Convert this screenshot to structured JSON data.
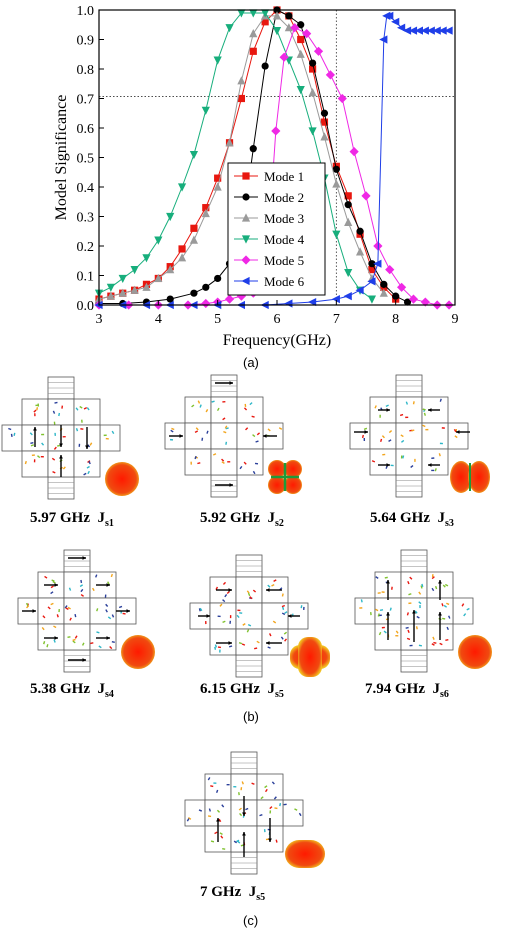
{
  "chart_data": {
    "type": "line",
    "xlabel": "Frequency(GHz)",
    "ylabel": "Model Significance",
    "xlim": [
      3,
      9
    ],
    "ylim": [
      0,
      1.0
    ],
    "xticks": [
      "3",
      "4",
      "5",
      "6",
      "7",
      "8",
      "9"
    ],
    "yticks": [
      "0.0",
      "0.1",
      "0.2",
      "0.3",
      "0.4",
      "0.5",
      "0.6",
      "0.7",
      "0.8",
      "0.9",
      "1.0"
    ],
    "reference_lines": {
      "x": 7,
      "y": 0.707
    },
    "legend_position": "center-right",
    "series": [
      {
        "name": "Mode 1",
        "color": "#e8170f",
        "marker": "square",
        "x": [
          3.0,
          3.2,
          3.4,
          3.6,
          3.8,
          4.0,
          4.2,
          4.4,
          4.6,
          4.8,
          5.0,
          5.2,
          5.4,
          5.6,
          5.8,
          6.0,
          6.2,
          6.4,
          6.6,
          6.8,
          7.0,
          7.2,
          7.4,
          7.6,
          7.8,
          8.0
        ],
        "y": [
          0.02,
          0.03,
          0.04,
          0.05,
          0.07,
          0.09,
          0.13,
          0.19,
          0.26,
          0.33,
          0.43,
          0.55,
          0.7,
          0.86,
          0.96,
          1.0,
          0.98,
          0.9,
          0.8,
          0.62,
          0.47,
          0.37,
          0.24,
          0.12,
          0.06,
          0.02
        ]
      },
      {
        "name": "Mode 2",
        "color": "#000000",
        "marker": "circle",
        "x": [
          3.0,
          3.4,
          3.8,
          4.2,
          4.6,
          4.8,
          5.0,
          5.2,
          5.4,
          5.6,
          5.8,
          6.0,
          6.2,
          6.4,
          6.6,
          6.8,
          7.0,
          7.2,
          7.4,
          7.6,
          7.8,
          8.0,
          8.2
        ],
        "y": [
          0.005,
          0.005,
          0.01,
          0.02,
          0.04,
          0.06,
          0.09,
          0.14,
          0.23,
          0.53,
          0.81,
          1.0,
          0.98,
          0.95,
          0.82,
          0.65,
          0.46,
          0.34,
          0.25,
          0.14,
          0.07,
          0.03,
          0.01
        ]
      },
      {
        "name": "Mode 3",
        "color": "#9a9a9a",
        "marker": "triangle-up",
        "x": [
          3.0,
          3.2,
          3.4,
          3.6,
          3.8,
          4.0,
          4.2,
          4.4,
          4.6,
          4.8,
          5.0,
          5.2,
          5.4,
          5.6,
          5.8,
          6.0,
          6.2,
          6.4,
          6.6,
          6.8,
          7.0,
          7.2,
          7.4,
          7.6,
          7.8
        ],
        "y": [
          0.02,
          0.03,
          0.04,
          0.05,
          0.06,
          0.09,
          0.12,
          0.16,
          0.22,
          0.31,
          0.4,
          0.55,
          0.76,
          0.92,
          0.98,
          0.98,
          0.94,
          0.85,
          0.72,
          0.57,
          0.41,
          0.28,
          0.18,
          0.09,
          0.04
        ]
      },
      {
        "name": "Mode 4",
        "color": "#17ae7c",
        "marker": "triangle-down",
        "x": [
          3.0,
          3.2,
          3.4,
          3.6,
          3.8,
          4.0,
          4.2,
          4.4,
          4.6,
          4.8,
          5.0,
          5.2,
          5.4,
          5.6,
          5.8,
          6.0,
          6.2,
          6.4,
          6.6,
          6.8,
          7.0,
          7.2,
          7.4,
          7.6
        ],
        "y": [
          0.04,
          0.06,
          0.09,
          0.12,
          0.16,
          0.22,
          0.3,
          0.4,
          0.51,
          0.66,
          0.83,
          0.94,
          0.99,
          0.99,
          0.99,
          0.93,
          0.83,
          0.73,
          0.59,
          0.43,
          0.24,
          0.11,
          0.05,
          0.02
        ]
      },
      {
        "name": "Mode 5",
        "color": "#ef28e5",
        "marker": "diamond",
        "x": [
          3.0,
          3.5,
          4.0,
          4.5,
          4.8,
          5.0,
          5.2,
          5.4,
          5.6,
          5.8,
          5.98,
          6.12,
          6.3,
          6.5,
          6.7,
          6.9,
          7.1,
          7.3,
          7.5,
          7.7,
          7.9,
          8.1,
          8.3,
          8.5,
          8.7,
          8.9
        ],
        "y": [
          0.0,
          0.0,
          0.0,
          0.0,
          0.005,
          0.01,
          0.02,
          0.03,
          0.04,
          0.06,
          0.59,
          0.84,
          0.94,
          0.92,
          0.86,
          0.78,
          0.7,
          0.52,
          0.37,
          0.2,
          0.12,
          0.06,
          0.02,
          0.01,
          0.0,
          0.0
        ]
      },
      {
        "name": "Mode 6",
        "color": "#1f3ee8",
        "marker": "triangle-left",
        "x": [
          3.0,
          3.4,
          3.8,
          4.2,
          4.6,
          5.0,
          5.4,
          5.8,
          6.2,
          6.6,
          7.0,
          7.2,
          7.4,
          7.6,
          7.7,
          7.8,
          7.85,
          7.9,
          8.0,
          8.1,
          8.2,
          8.3,
          8.4,
          8.5,
          8.6,
          8.7,
          8.8,
          8.9
        ],
        "y": [
          0.0,
          0.0,
          0.0,
          0.0,
          0.0,
          0.0,
          0.0,
          0.0,
          0.005,
          0.01,
          0.02,
          0.03,
          0.05,
          0.08,
          0.14,
          0.9,
          0.98,
          0.98,
          0.96,
          0.94,
          0.93,
          0.93,
          0.93,
          0.93,
          0.93,
          0.93,
          0.93,
          0.93
        ]
      }
    ]
  },
  "panel_labels": {
    "a": "(a)",
    "b": "(b)",
    "c": "(c)"
  },
  "current_panels": [
    {
      "freq": "5.97 GHz",
      "j": "J",
      "sub": "s1",
      "pattern": "sphere"
    },
    {
      "freq": "5.92 GHz",
      "j": "J",
      "sub": "s2",
      "pattern": "clover"
    },
    {
      "freq": "5.64 GHz",
      "j": "J",
      "sub": "s3",
      "pattern": "bilobe"
    },
    {
      "freq": "5.38 GHz",
      "j": "J",
      "sub": "s4",
      "pattern": "sphere"
    },
    {
      "freq": "6.15 GHz",
      "j": "J",
      "sub": "s5",
      "pattern": "cross"
    },
    {
      "freq": "7.94 GHz",
      "j": "J",
      "sub": "s6",
      "pattern": "sphere"
    },
    {
      "freq": "7 GHz",
      "j": "J",
      "sub": "s5",
      "pattern": "capsule"
    }
  ],
  "colors": {
    "hot": "#e8170f",
    "warm": "#f2a51d",
    "mid": "#7fc12e",
    "cool": "#2cb6c7",
    "cold": "#2a3f9a"
  }
}
